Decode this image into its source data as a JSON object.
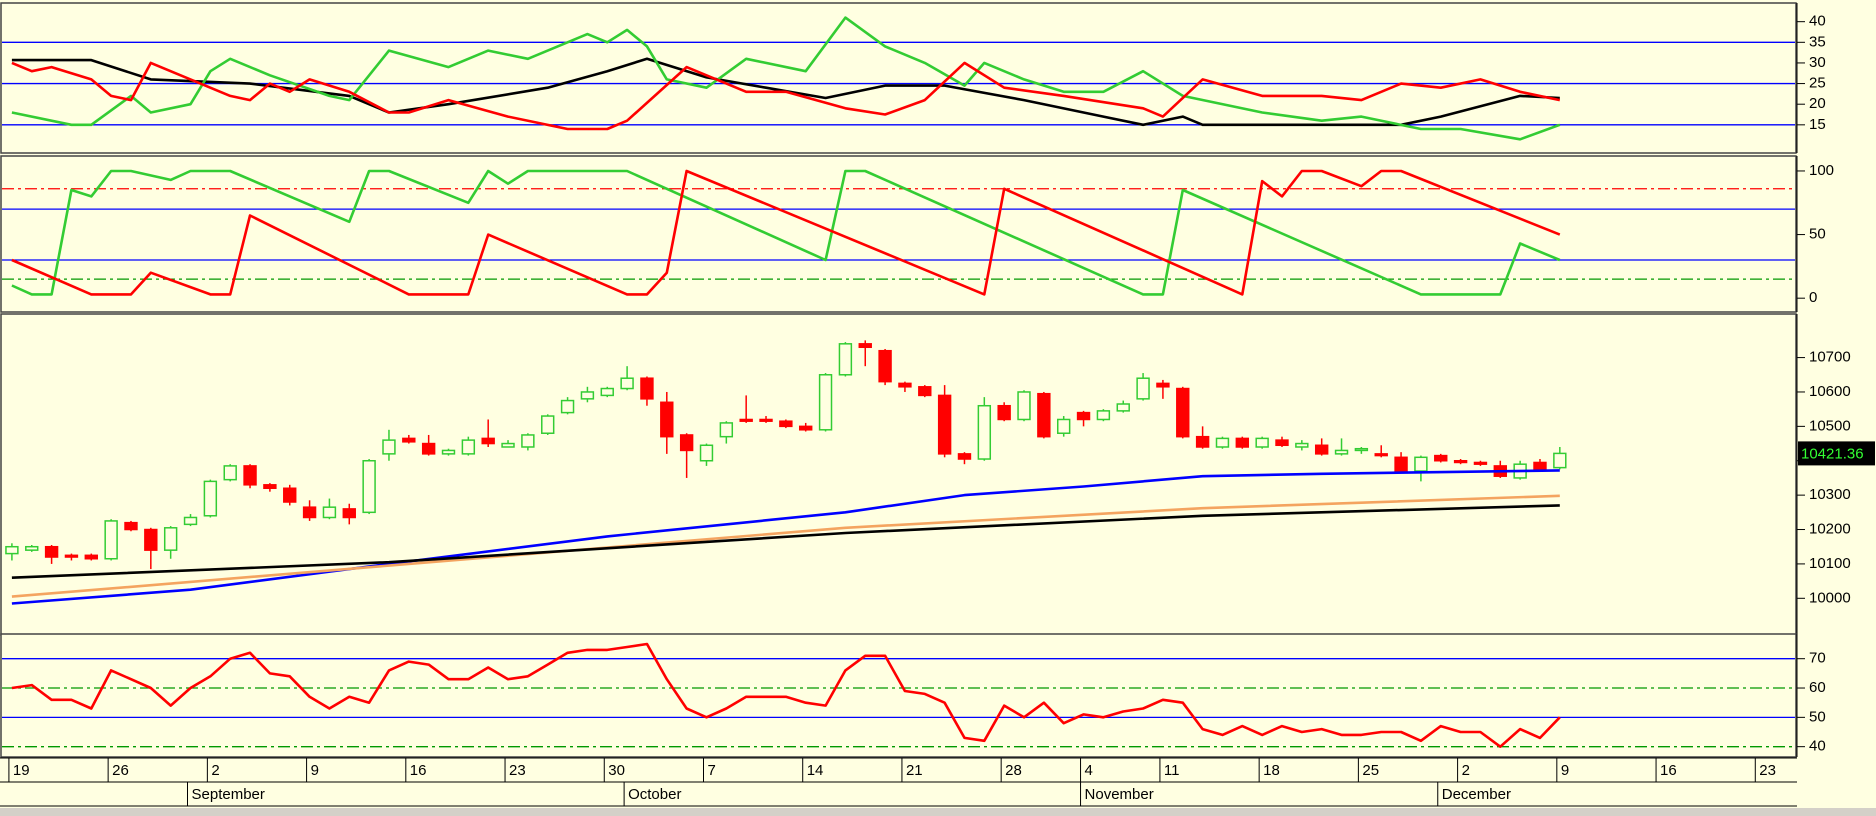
{
  "chart_data": [
    {
      "type": "line",
      "xlim": [
        -0.6,
        89.8
      ],
      "ylim": [
        8.9,
        43.8
      ],
      "yticks": [
        15,
        20,
        25,
        30,
        35,
        40
      ],
      "reference_lines": [
        {
          "value": 15,
          "color": "#0000ff",
          "style": "solid"
        },
        {
          "value": 25,
          "color": "#0000ff",
          "style": "solid"
        },
        {
          "value": 35,
          "color": "#0000ff",
          "style": "solid"
        }
      ],
      "series": [
        {
          "color": "#000000",
          "x": [
            0,
            4,
            7,
            12,
            17,
            19,
            22,
            27,
            30,
            32,
            35,
            38,
            41,
            44,
            47,
            51,
            55,
            57,
            59,
            60,
            70,
            72,
            76,
            78
          ],
          "values": [
            30.7,
            30.7,
            26,
            25,
            22,
            18,
            20,
            24,
            28,
            31,
            26.5,
            24,
            21.5,
            24.5,
            24.5,
            21,
            17,
            15,
            17,
            15,
            15,
            17,
            22,
            21.5
          ]
        },
        {
          "color": "#33cc33",
          "x": [
            0,
            3,
            4,
            6,
            7,
            9,
            10,
            11,
            13,
            16,
            17,
            19,
            22,
            24,
            26,
            29,
            30,
            31,
            32,
            33,
            35,
            37,
            40,
            42,
            44,
            46,
            48,
            49,
            51,
            53,
            55,
            57,
            59,
            63,
            66,
            68,
            71,
            73,
            76,
            78
          ],
          "values": [
            18,
            15,
            15,
            22,
            18,
            20,
            28,
            31,
            27,
            22,
            21,
            33,
            29,
            33,
            31,
            37,
            35,
            38,
            34,
            26,
            24,
            31,
            28,
            41,
            34,
            30,
            24.5,
            30,
            26,
            23,
            23,
            28,
            22,
            18,
            16,
            17,
            14,
            14,
            11.5,
            15
          ]
        },
        {
          "color": "#ff0000",
          "x": [
            0,
            1,
            2,
            4,
            5,
            6,
            7,
            9,
            11,
            12,
            13,
            14,
            15,
            17,
            19,
            20,
            22,
            25,
            28,
            30,
            31,
            34,
            37,
            39,
            42,
            44,
            46,
            48,
            50,
            53,
            57,
            58,
            60,
            63,
            66,
            68,
            70,
            72,
            74,
            76,
            78
          ],
          "values": [
            30,
            28,
            29,
            26,
            22,
            21,
            30,
            26,
            22,
            21,
            25,
            23,
            26,
            23,
            18,
            18,
            21,
            17,
            14,
            14,
            16,
            29,
            23,
            23,
            19,
            17.5,
            21,
            30,
            24,
            22,
            19,
            17,
            26,
            22,
            22,
            21,
            25,
            24,
            26,
            23,
            21
          ]
        }
      ]
    },
    {
      "type": "line",
      "xlim": [
        -0.6,
        89.8
      ],
      "ylim": [
        -8.5,
        109.4
      ],
      "yticks": [
        0,
        50,
        100
      ],
      "reference_lines": [
        {
          "value": 86,
          "color": "#ff0000",
          "style": "dashdot"
        },
        {
          "value": 70,
          "color": "#0000ff",
          "style": "solid"
        },
        {
          "value": 30,
          "color": "#0000ff",
          "style": "solid"
        },
        {
          "value": 15,
          "color": "#009900",
          "style": "dashdot"
        }
      ],
      "series": [
        {
          "color": "#33cc33",
          "x": [
            0,
            1,
            2,
            3,
            4,
            5,
            6,
            8,
            9,
            11,
            17,
            18,
            19,
            23,
            24,
            25,
            26,
            31,
            41,
            42,
            43,
            57,
            58,
            59,
            71,
            75,
            76,
            78
          ],
          "values": [
            10,
            3,
            3,
            85,
            80,
            100,
            100,
            93,
            100,
            100,
            60,
            100,
            100,
            75,
            100,
            90,
            100,
            100,
            30,
            100,
            100,
            3,
            3,
            85,
            3,
            3,
            43,
            30
          ]
        },
        {
          "color": "#ff0000",
          "x": [
            0,
            4,
            6,
            7,
            10,
            11,
            12,
            20,
            23,
            24,
            31,
            32,
            33,
            34,
            49,
            50,
            62,
            63,
            64,
            65,
            66,
            68,
            69,
            70,
            78
          ],
          "values": [
            30,
            3,
            3,
            20,
            3,
            3,
            65,
            3,
            3,
            50,
            3,
            3,
            20,
            100,
            3,
            86,
            3,
            92,
            80,
            100,
            100,
            88,
            100,
            100,
            50
          ]
        }
      ]
    },
    {
      "type": "candlestick",
      "xlim": [
        -0.6,
        89.8
      ],
      "ylim": [
        9902,
        10818
      ],
      "yticks": [
        10000,
        10100,
        10200,
        10300,
        10400,
        10500,
        10600,
        10700
      ],
      "up_color": "#33cc33",
      "down_color": "#ff0000",
      "x": [
        0,
        1,
        2,
        3,
        4,
        5,
        6,
        7,
        8,
        9,
        10,
        11,
        12,
        13,
        14,
        15,
        16,
        17,
        18,
        19,
        20,
        21,
        22,
        23,
        24,
        25,
        26,
        27,
        28,
        29,
        30,
        31,
        32,
        33,
        34,
        35,
        36,
        37,
        38,
        39,
        40,
        41,
        42,
        43,
        44,
        45,
        46,
        47,
        48,
        49,
        50,
        51,
        52,
        53,
        54,
        55,
        56,
        57,
        58,
        59,
        60,
        61,
        62,
        63,
        64,
        65,
        66,
        67,
        68,
        69,
        70,
        71,
        72,
        73,
        74,
        75,
        76,
        77,
        78
      ],
      "open": [
        10130,
        10140,
        10150,
        10125,
        10125,
        10115,
        10220,
        10200,
        10140,
        10215,
        10240,
        10345,
        10385,
        10330,
        10320,
        10265,
        10235,
        10260,
        10250,
        10420,
        10465,
        10450,
        10420,
        10420,
        10465,
        10440,
        10440,
        10480,
        10540,
        10580,
        10590,
        10610,
        10640,
        10570,
        10475,
        10400,
        10470,
        10520,
        10520,
        10515,
        10500,
        10490,
        10650,
        10740,
        10720,
        10625,
        10615,
        10590,
        10420,
        10405,
        10560,
        10520,
        10595,
        10480,
        10540,
        10520,
        10545,
        10580,
        10625,
        10610,
        10470,
        10440,
        10465,
        10440,
        10460,
        10440,
        10445,
        10420,
        10430,
        10420,
        10410,
        10370,
        10415,
        10400,
        10395,
        10385,
        10350,
        10395,
        10380
      ],
      "high": [
        10160,
        10155,
        10155,
        10130,
        10130,
        10230,
        10225,
        10205,
        10210,
        10245,
        10345,
        10390,
        10390,
        10335,
        10330,
        10285,
        10290,
        10275,
        10405,
        10490,
        10475,
        10475,
        10435,
        10470,
        10520,
        10460,
        10480,
        10535,
        10585,
        10615,
        10615,
        10675,
        10645,
        10600,
        10480,
        10450,
        10515,
        10590,
        10530,
        10520,
        10510,
        10655,
        10745,
        10750,
        10725,
        10630,
        10620,
        10620,
        10425,
        10585,
        10570,
        10605,
        10600,
        10530,
        10545,
        10550,
        10575,
        10655,
        10635,
        10615,
        10500,
        10470,
        10470,
        10470,
        10470,
        10460,
        10465,
        10465,
        10440,
        10445,
        10425,
        10415,
        10420,
        10405,
        10400,
        10400,
        10400,
        10405,
        10440
      ],
      "low": [
        10110,
        10135,
        10100,
        10110,
        10110,
        10110,
        10195,
        10085,
        10115,
        10210,
        10235,
        10340,
        10320,
        10310,
        10270,
        10225,
        10230,
        10215,
        10245,
        10400,
        10450,
        10415,
        10415,
        10415,
        10440,
        10440,
        10430,
        10475,
        10535,
        10570,
        10585,
        10605,
        10560,
        10420,
        10350,
        10385,
        10450,
        10510,
        10510,
        10495,
        10485,
        10485,
        10645,
        10675,
        10620,
        10600,
        10585,
        10410,
        10390,
        10400,
        10515,
        10515,
        10465,
        10470,
        10500,
        10515,
        10540,
        10575,
        10580,
        10465,
        10435,
        10435,
        10435,
        10435,
        10440,
        10430,
        10415,
        10415,
        10420,
        10410,
        10365,
        10340,
        10395,
        10390,
        10385,
        10350,
        10345,
        10370,
        10375
      ],
      "close": [
        10150,
        10150,
        10120,
        10120,
        10115,
        10225,
        10200,
        10140,
        10205,
        10235,
        10340,
        10385,
        10330,
        10320,
        10280,
        10235,
        10265,
        10235,
        10400,
        10460,
        10455,
        10420,
        10430,
        10460,
        10450,
        10450,
        10475,
        10530,
        10575,
        10600,
        10610,
        10640,
        10580,
        10470,
        10430,
        10445,
        10510,
        10515,
        10515,
        10500,
        10490,
        10650,
        10740,
        10730,
        10630,
        10615,
        10590,
        10420,
        10405,
        10560,
        10520,
        10600,
        10470,
        10520,
        10520,
        10545,
        10565,
        10640,
        10615,
        10470,
        10440,
        10465,
        10440,
        10465,
        10445,
        10450,
        10420,
        10430,
        10435,
        10415,
        10370,
        10410,
        10400,
        10395,
        10390,
        10355,
        10390,
        10375,
        10421.36
      ],
      "series": [
        {
          "color": "#0000ff",
          "x": [
            0,
            9,
            19,
            30,
            42,
            48,
            54,
            60,
            66,
            78
          ],
          "values": [
            9985,
            10025,
            10100,
            10180,
            10250,
            10300,
            10325,
            10355,
            10362,
            10372
          ]
        },
        {
          "color": "#f4a460",
          "x": [
            0,
            19,
            42,
            60,
            78
          ],
          "values": [
            10005,
            10095,
            10205,
            10262,
            10298
          ]
        },
        {
          "color": "#000000",
          "x": [
            0,
            19,
            42,
            60,
            78
          ],
          "values": [
            10060,
            10105,
            10190,
            10240,
            10270
          ]
        }
      ]
    },
    {
      "type": "line",
      "xlim": [
        -0.6,
        89.8
      ],
      "ylim": [
        37.5,
        77.4
      ],
      "yticks": [
        40,
        50,
        60,
        70
      ],
      "reference_lines": [
        {
          "value": 70,
          "color": "#0000ff",
          "style": "solid"
        },
        {
          "value": 60,
          "color": "#009900",
          "style": "dashdot"
        },
        {
          "value": 50,
          "color": "#0000ff",
          "style": "solid"
        },
        {
          "value": 40,
          "color": "#009900",
          "style": "dashdot"
        }
      ],
      "series": [
        {
          "color": "#ff0000",
          "x": [
            0,
            1,
            2,
            3,
            4,
            5,
            6,
            7,
            8,
            9,
            10,
            11,
            12,
            13,
            14,
            15,
            16,
            17,
            18,
            19,
            20,
            21,
            22,
            23,
            24,
            25,
            26,
            27,
            28,
            29,
            30,
            31,
            32,
            33,
            34,
            35,
            36,
            37,
            38,
            39,
            40,
            41,
            42,
            43,
            44,
            45,
            46,
            47,
            48,
            49,
            50,
            51,
            52,
            53,
            54,
            55,
            56,
            57,
            58,
            59,
            60,
            61,
            62,
            63,
            64,
            65,
            66,
            67,
            68,
            69,
            70,
            71,
            72,
            73,
            74,
            75,
            76,
            77,
            78
          ],
          "values": [
            60,
            61,
            56,
            56,
            53,
            66,
            63,
            60,
            54,
            60,
            64,
            70,
            72,
            65,
            64,
            57,
            53,
            57,
            55,
            66,
            69,
            68,
            63,
            63,
            67,
            63,
            64,
            68,
            72,
            73,
            73,
            74,
            75,
            63,
            53,
            50,
            53,
            57,
            57,
            57,
            55,
            54,
            66,
            71,
            71,
            59,
            58,
            55,
            43,
            42,
            54,
            50,
            55,
            48,
            51,
            50,
            52,
            53,
            56,
            55,
            46,
            44,
            47,
            44,
            47,
            45,
            46,
            44,
            44,
            45,
            45,
            42,
            47,
            45,
            45,
            40,
            46,
            43,
            50
          ]
        }
      ],
      "xticks": [
        {
          "value": 0,
          "label": "19"
        },
        {
          "value": 5,
          "label": "26"
        },
        {
          "value": 10,
          "label": "2"
        },
        {
          "value": 15,
          "label": "9"
        },
        {
          "value": 20,
          "label": "16"
        },
        {
          "value": 25,
          "label": "23"
        },
        {
          "value": 30,
          "label": "30"
        },
        {
          "value": 35,
          "label": "7"
        },
        {
          "value": 40,
          "label": "14"
        },
        {
          "value": 45,
          "label": "21"
        },
        {
          "value": 50,
          "label": "28"
        },
        {
          "value": 54,
          "label": "4"
        },
        {
          "value": 58,
          "label": "11"
        },
        {
          "value": 63,
          "label": "18"
        },
        {
          "value": 68,
          "label": "25"
        },
        {
          "value": 73,
          "label": "2"
        },
        {
          "value": 78,
          "label": "9"
        },
        {
          "value": 83,
          "label": "16"
        },
        {
          "value": 88,
          "label": "23"
        }
      ],
      "month_ticks": [
        {
          "value": 9,
          "label": "September"
        },
        {
          "value": 31,
          "label": "October"
        },
        {
          "value": 54,
          "label": "November"
        },
        {
          "value": 72,
          "label": "December"
        }
      ]
    }
  ]
}
